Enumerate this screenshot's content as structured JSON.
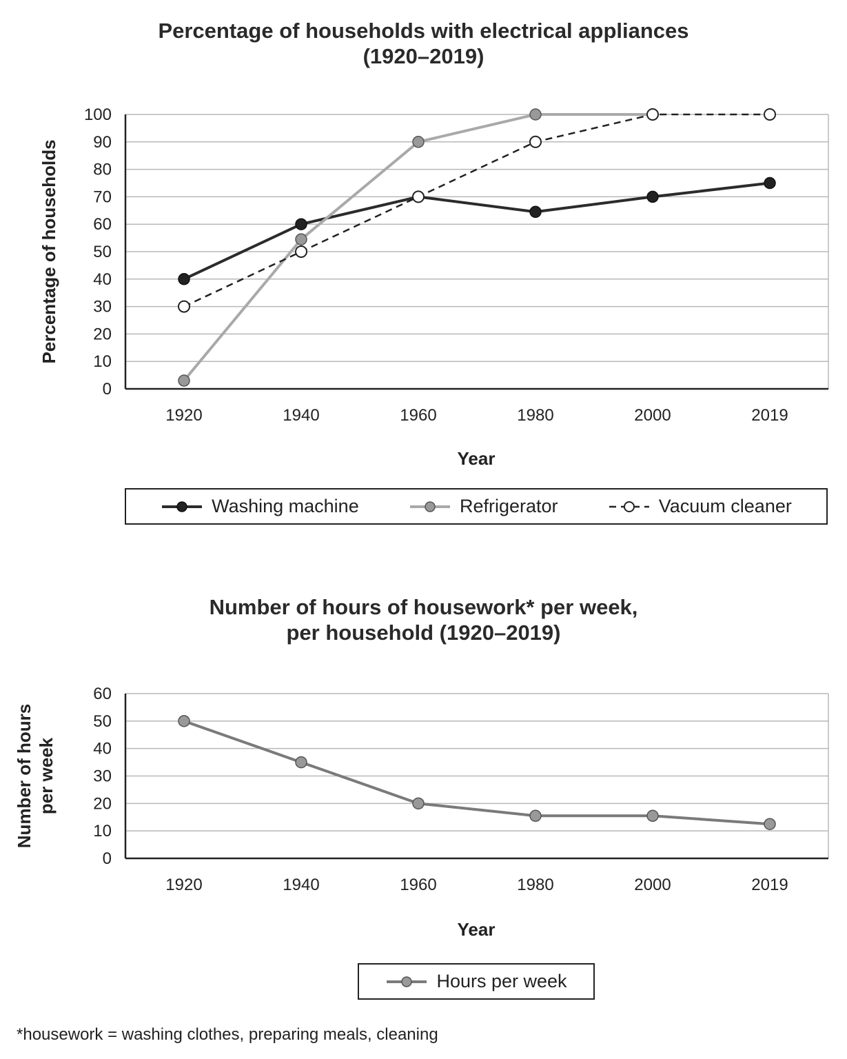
{
  "charts": [
    {
      "title_line1": "Percentage of households with electrical appliances",
      "title_line2": "(1920–2019)",
      "chart_data": {
        "type": "line",
        "categories": [
          "1920",
          "1940",
          "1960",
          "1980",
          "2000",
          "2019"
        ],
        "xlabel": "Year",
        "ylabel": "Percentage of households",
        "ylim": [
          0,
          100
        ],
        "yticks": [
          0,
          10,
          20,
          30,
          40,
          50,
          60,
          70,
          80,
          90,
          100
        ],
        "grid": true,
        "legend_position": "bottom",
        "series": [
          {
            "name": "Washing machine",
            "values": [
              40,
              60,
              70,
              64.5,
              70,
              75
            ],
            "color": "#2b2b2b",
            "marker": "filled-dark",
            "style": "solid"
          },
          {
            "name": "Refrigerator",
            "values": [
              3,
              54.5,
              90,
              100,
              100,
              null
            ],
            "color": "#a9a9a9",
            "marker": "filled-gray",
            "style": "solid"
          },
          {
            "name": "Vacuum cleaner",
            "values": [
              30,
              50,
              70,
              90,
              100,
              100
            ],
            "color": "#222222",
            "marker": "open",
            "style": "dashed"
          }
        ]
      }
    },
    {
      "title_line1": "Number of hours of housework* per week,",
      "title_line2": "per household (1920–2019)",
      "chart_data": {
        "type": "line",
        "categories": [
          "1920",
          "1940",
          "1960",
          "1980",
          "2000",
          "2019"
        ],
        "xlabel": "Year",
        "ylabel_line1": "Number of hours",
        "ylabel_line2": "per week",
        "ylim": [
          0,
          60
        ],
        "yticks": [
          0,
          10,
          20,
          30,
          40,
          50,
          60
        ],
        "grid": true,
        "legend_position": "bottom",
        "series": [
          {
            "name": "Hours per week",
            "values": [
              50,
              35,
              20,
              15.5,
              15.5,
              12.5
            ],
            "color": "#7a7a7a",
            "marker": "filled-gray",
            "style": "solid"
          }
        ]
      }
    }
  ],
  "footnote": "*housework = washing clothes, preparing meals, cleaning"
}
